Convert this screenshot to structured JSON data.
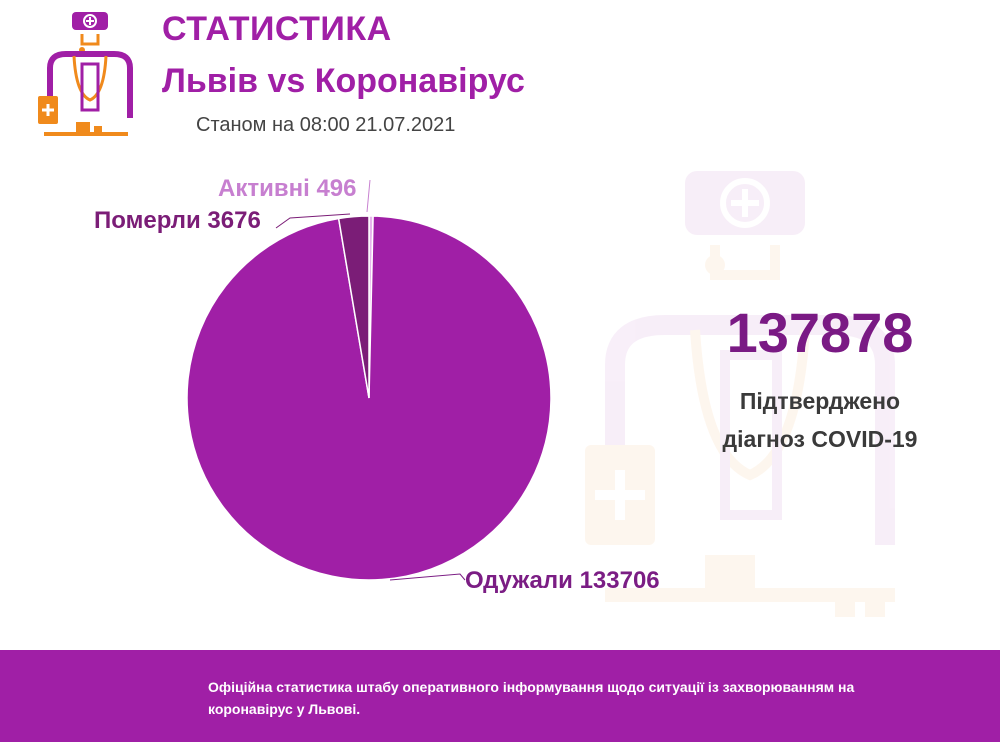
{
  "header": {
    "title": "СТАТИСТИКА",
    "subtitle": "Львів vs Коронавірус",
    "date": "Станом на 08:00 21.07.2021"
  },
  "logo_icon": "doctor-icon",
  "summary": {
    "total": "137878",
    "label_line1": "Підтверджено",
    "label_line2": "діагноз COVID-19"
  },
  "footer": {
    "text": "Офіційна статистика штабу оперативного інформування щодо ситуації із захворюванням на коронавірус у Львові."
  },
  "colors": {
    "brand": "#a01fa6",
    "dark": "#7a1a84",
    "active": "#c77fd0",
    "deaths": "#7b1d77",
    "recovered": "#a01fa6"
  },
  "chart_data": {
    "type": "pie",
    "slices": [
      {
        "label": "Активні 496",
        "value": 496,
        "color": "#e7b4ec",
        "text_color": "#c77fd0"
      },
      {
        "label": "Одужали 133706",
        "value": 133706,
        "color": "#a01fa6",
        "text_color": "#7b1d84"
      },
      {
        "label": "Померли 3676",
        "value": 3676,
        "color": "#7b1d77",
        "text_color": "#7b1d77"
      }
    ]
  }
}
